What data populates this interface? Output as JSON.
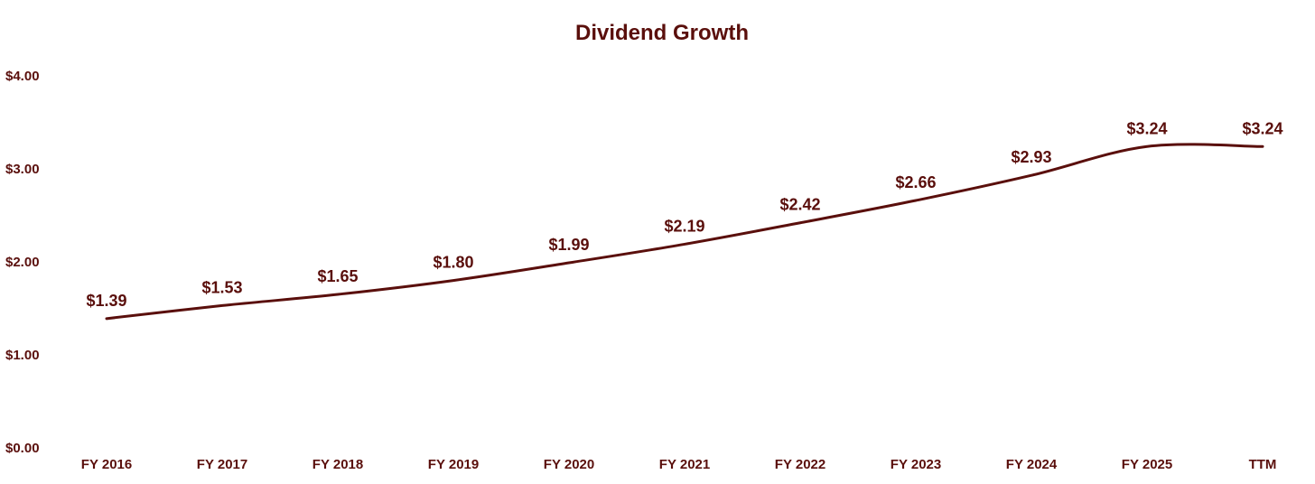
{
  "colors": {
    "primary": "#5a0f0c"
  },
  "chart_data": {
    "type": "line",
    "title": "Dividend Growth",
    "xlabel": "",
    "ylabel": "",
    "ylim": [
      0,
      4
    ],
    "y_ticks": [
      {
        "value": 0,
        "label": "$0.00"
      },
      {
        "value": 1,
        "label": "$1.00"
      },
      {
        "value": 2,
        "label": "$2.00"
      },
      {
        "value": 3,
        "label": "$3.00"
      },
      {
        "value": 4,
        "label": "$4.00"
      }
    ],
    "grid": false,
    "categories": [
      "FY 2016",
      "FY 2017",
      "FY 2018",
      "FY 2019",
      "FY 2020",
      "FY 2021",
      "FY 2022",
      "FY 2023",
      "FY 2024",
      "FY 2025",
      "TTM"
    ],
    "series": [
      {
        "name": "Dividend",
        "values": [
          1.39,
          1.53,
          1.65,
          1.8,
          1.99,
          2.19,
          2.42,
          2.66,
          2.93,
          3.24,
          3.24
        ],
        "data_labels": [
          "$1.39",
          "$1.53",
          "$1.65",
          "$1.80",
          "$1.99",
          "$2.19",
          "$2.42",
          "$2.66",
          "$2.93",
          "$3.24",
          "$3.24"
        ]
      }
    ]
  }
}
